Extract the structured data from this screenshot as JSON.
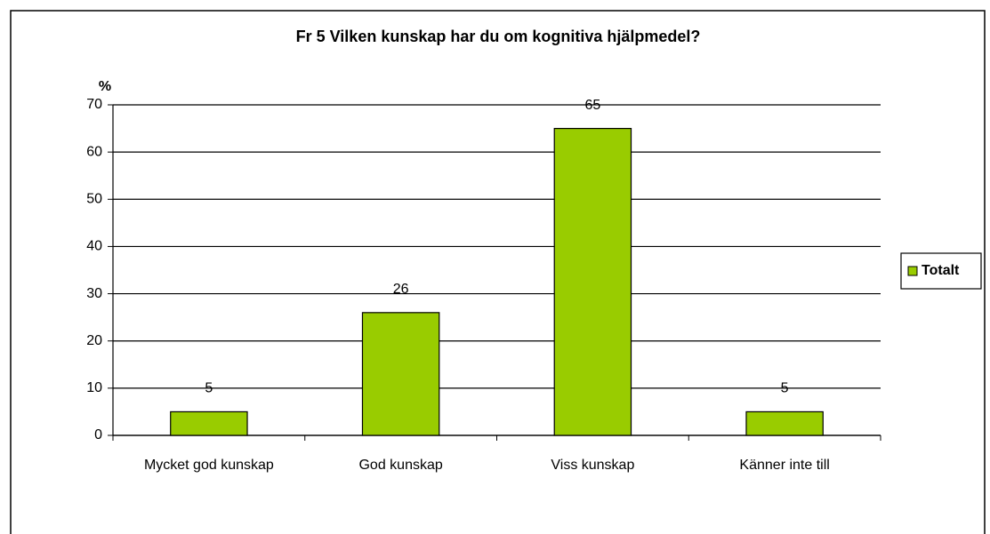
{
  "chart_data": {
    "type": "bar",
    "title": "Fr 5 Vilken kunskap har du om kognitiva hjälpmedel?",
    "y_label": "%",
    "categories": [
      "Mycket god kunskap",
      "God kunskap",
      "Viss kunskap",
      "Känner inte till"
    ],
    "series": [
      {
        "name": "Totalt",
        "color": "#99cc00",
        "values": [
          5,
          26,
          65,
          5
        ]
      }
    ],
    "ylim": [
      0,
      70
    ],
    "yticks": [
      0,
      10,
      20,
      30,
      40,
      50,
      60,
      70
    ],
    "grid": true,
    "legend": "right"
  }
}
